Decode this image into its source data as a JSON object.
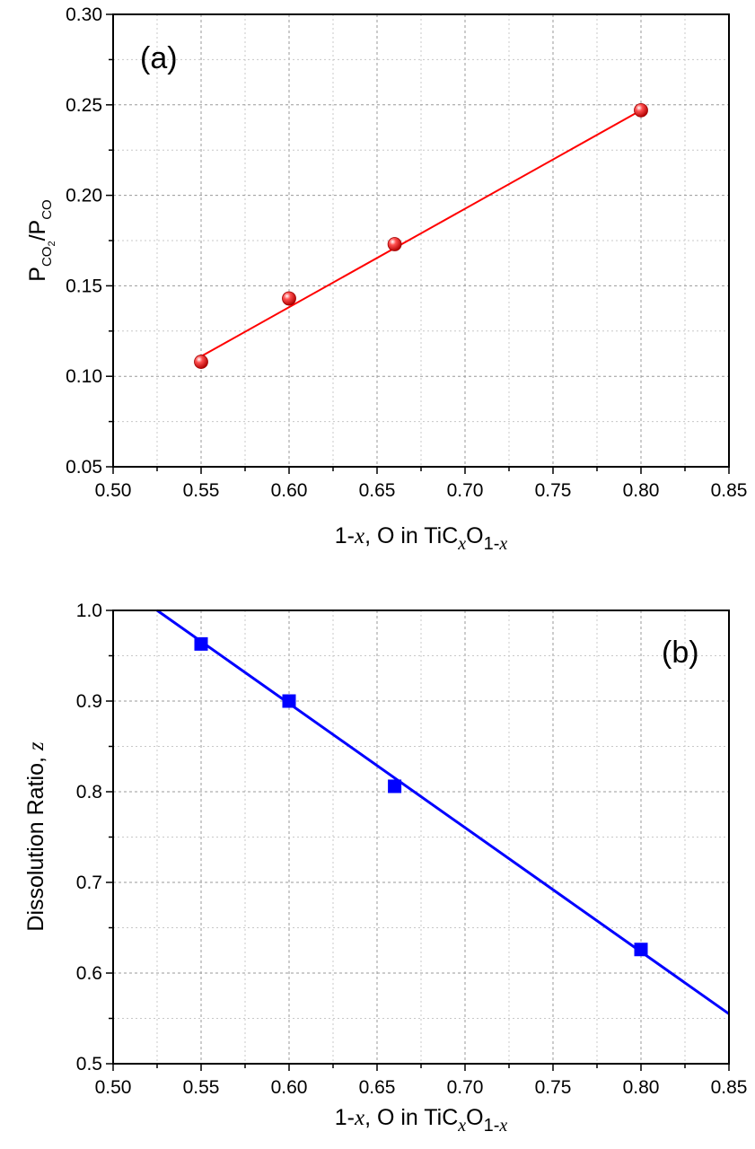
{
  "chart_data": [
    {
      "id": "a",
      "type": "scatter",
      "panel_label": "(a)",
      "xlim": [
        0.5,
        0.85
      ],
      "ylim": [
        0.05,
        0.3
      ],
      "x_ticks": [
        "0.50",
        "0.55",
        "0.60",
        "0.65",
        "0.70",
        "0.75",
        "0.80",
        "0.85"
      ],
      "y_ticks": [
        "0.05",
        "0.10",
        "0.15",
        "0.20",
        "0.25",
        "0.30"
      ],
      "xlabel": {
        "prefix": "1-",
        "var": "x",
        "mid": ", O in TiC",
        "sub1": "x",
        "sub2a": "O",
        "sub2b": "1-",
        "sub2var": "x"
      },
      "ylabel": {
        "p1": "P",
        "s1": "CO",
        "s1sub": "2",
        "slash": "/P",
        "s2": "CO"
      },
      "grid": true,
      "marker": "sphere",
      "color": "#ff0000",
      "x": [
        0.55,
        0.6,
        0.66,
        0.8
      ],
      "y": [
        0.108,
        0.143,
        0.173,
        0.247
      ],
      "fit": {
        "x": [
          0.55,
          0.8
        ],
        "y": [
          0.111,
          0.247
        ]
      }
    },
    {
      "id": "b",
      "type": "scatter",
      "panel_label": "(b)",
      "xlim": [
        0.5,
        0.85
      ],
      "ylim": [
        0.5,
        1.0
      ],
      "x_ticks": [
        "0.50",
        "0.55",
        "0.60",
        "0.65",
        "0.70",
        "0.75",
        "0.80",
        "0.85"
      ],
      "y_ticks": [
        "0.5",
        "0.6",
        "0.7",
        "0.8",
        "0.9",
        "1.0"
      ],
      "xlabel": {
        "prefix": "1-",
        "var": "x",
        "mid": ", O in TiC",
        "sub1": "x",
        "sub2a": "O",
        "sub2b": "1-",
        "sub2var": "x"
      },
      "ylabel": {
        "text": "Dissolution Ratio, ",
        "var": "z"
      },
      "grid": true,
      "marker": "square",
      "color": "#0000ff",
      "x": [
        0.55,
        0.6,
        0.66,
        0.8
      ],
      "y": [
        0.963,
        0.9,
        0.806,
        0.626
      ],
      "fit": {
        "x": [
          0.525,
          0.85
        ],
        "y": [
          1.0,
          0.555
        ]
      }
    }
  ]
}
